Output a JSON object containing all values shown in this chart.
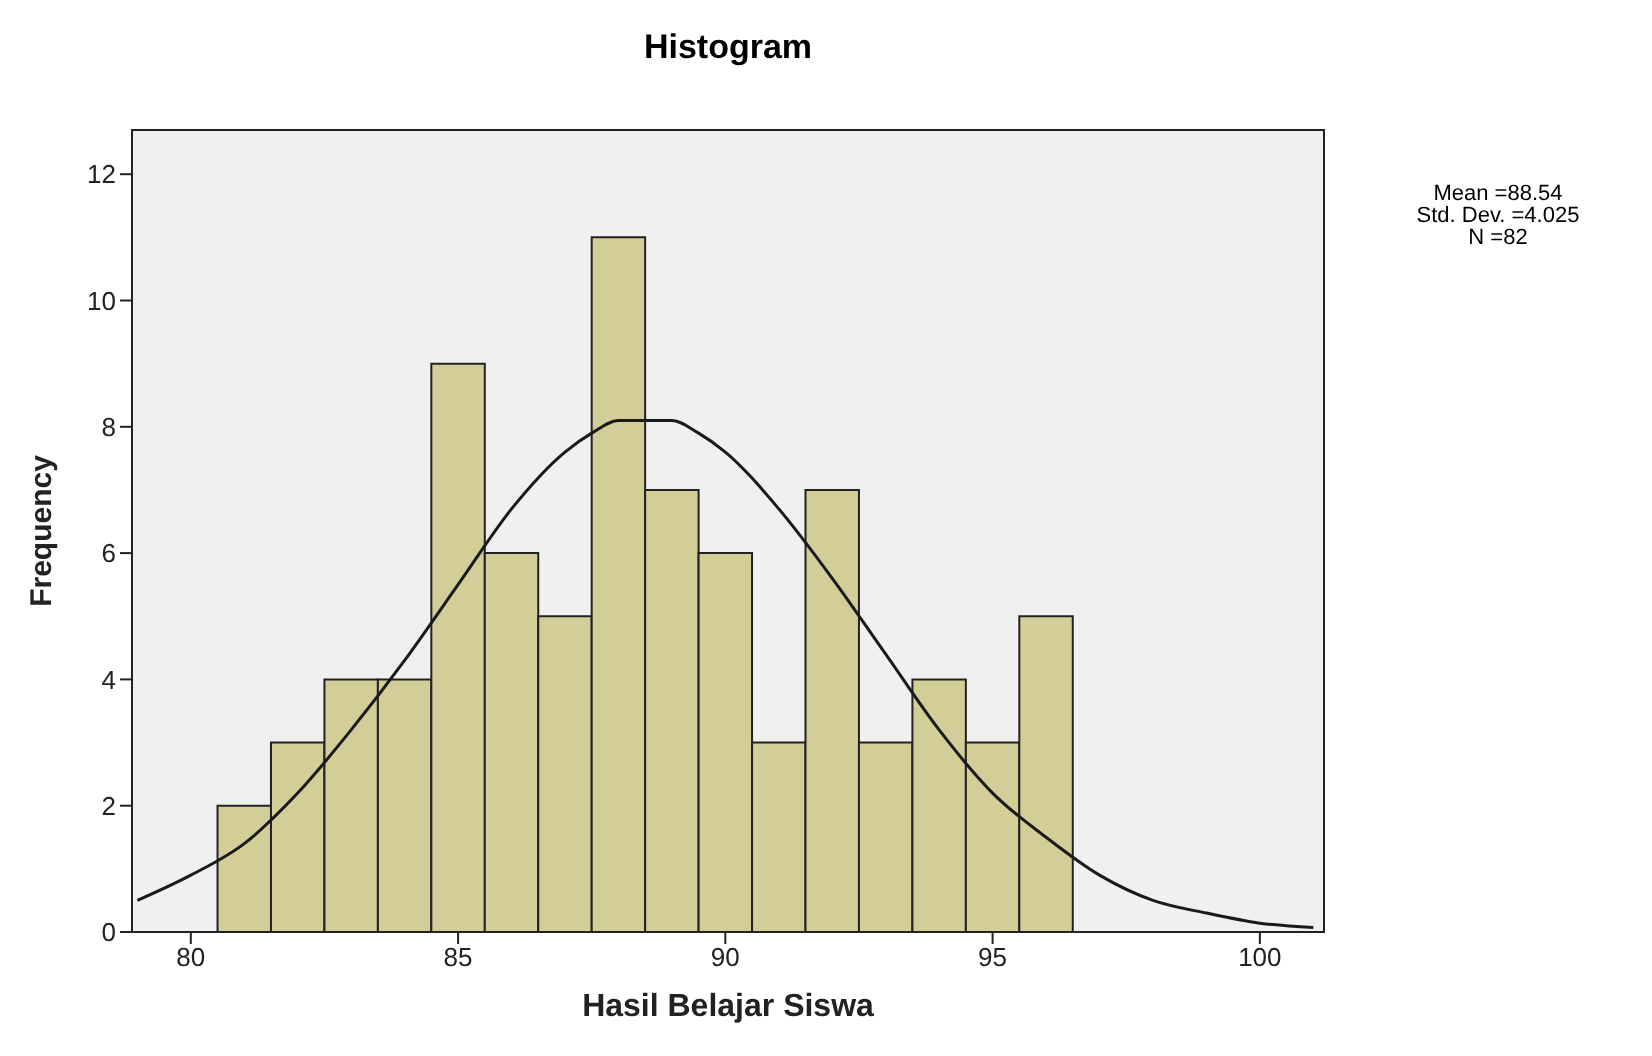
{
  "chart_data": {
    "type": "histogram",
    "title": "Histogram",
    "xlabel": "Hasil Belajar Siswa",
    "ylabel": "Frequency",
    "bins": [
      80.5,
      81.5,
      82.5,
      83.5,
      84.5,
      85.5,
      86.5,
      87.5,
      88.5,
      89.5,
      90.5,
      91.5,
      92.5,
      93.5,
      94.5,
      95.5,
      96.5
    ],
    "values": [
      2,
      3,
      4,
      4,
      9,
      6,
      5,
      11,
      7,
      6,
      3,
      7,
      3,
      4,
      3,
      5
    ],
    "color": "#d3ce97",
    "series": [
      {
        "type": "line",
        "color": "#1a1a1a",
        "x": [
          79,
          80,
          81,
          82,
          83,
          84,
          85,
          86,
          87,
          87.5,
          88,
          88.5,
          89,
          89.5,
          90,
          91,
          92,
          93,
          94,
          95,
          96,
          97,
          98,
          99,
          100,
          101
        ],
        "values": [
          0.5,
          0.9,
          1.4,
          2.2,
          3.2,
          4.3,
          5.5,
          6.7,
          7.6,
          7.9,
          8.1,
          8.1,
          8.1,
          7.9,
          7.6,
          6.7,
          5.6,
          4.4,
          3.2,
          2.2,
          1.5,
          0.9,
          0.5,
          0.3,
          0.14,
          0.07
        ]
      }
    ],
    "xlim": [
      78.9,
      101.2
    ],
    "xticks": [
      80,
      85,
      90,
      95,
      100
    ],
    "ylim": [
      0,
      12.7
    ],
    "yticks": [
      0,
      2,
      4,
      6,
      8,
      10,
      12
    ],
    "annotations": [
      "Mean =88.54",
      "Std. Dev. =4.025",
      "N =82"
    ]
  }
}
